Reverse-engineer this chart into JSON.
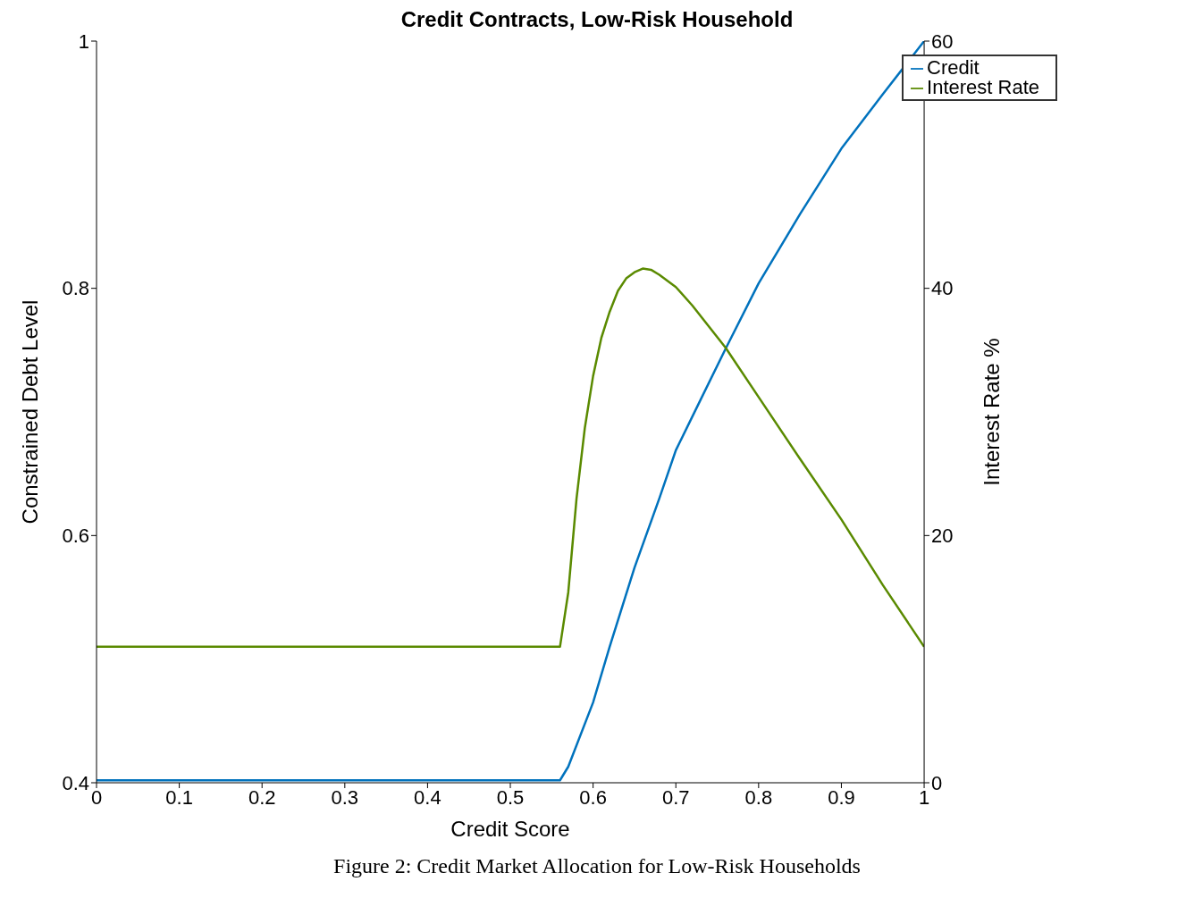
{
  "chart_data": {
    "type": "line",
    "title": "Credit Contracts, Low-Risk Household",
    "xlabel": "Credit Score",
    "ylabel": "Constrained Debt Level",
    "y2label": "Interest Rate %",
    "annotations": [
      "Figure 2: Credit Market Allocation for Low-Risk Households"
    ],
    "xlim": [
      0,
      1
    ],
    "xticks": [
      0,
      0.1,
      0.2,
      0.3,
      0.4,
      0.5,
      0.6,
      0.7,
      0.8,
      0.9,
      1
    ],
    "ylim": [
      0.4,
      1
    ],
    "yticks": [
      0.4,
      0.6,
      0.8,
      1
    ],
    "y2lim": [
      0,
      60
    ],
    "y2ticks": [
      0,
      20,
      40,
      60
    ],
    "grid": false,
    "legend": "top right",
    "marker": "none",
    "line_style": "solid",
    "series": [
      {
        "name": "Credit",
        "color": "#0072bd",
        "x": [
          0,
          0.56,
          0.57,
          0.6,
          0.62,
          0.65,
          0.68,
          0.7,
          0.73,
          0.76,
          0.8,
          0.85,
          0.9,
          0.95,
          1
        ],
        "values": [
          0.402,
          0.402,
          0.413,
          0.465,
          0.51,
          0.574,
          0.63,
          0.669,
          0.71,
          0.751,
          0.804,
          0.86,
          0.913,
          0.957,
          1
        ]
      },
      {
        "name": "Interest Rate",
        "color": "#5a8a00",
        "axis": "y2",
        "x": [
          0,
          0.56,
          0.57,
          0.58,
          0.59,
          0.6,
          0.61,
          0.62,
          0.63,
          0.64,
          0.65,
          0.66,
          0.67,
          0.68,
          0.7,
          0.72,
          0.76,
          0.8,
          0.85,
          0.9,
          0.95,
          1
        ],
        "values": [
          11,
          11,
          15.4,
          23,
          28.7,
          32.9,
          36,
          38.1,
          39.8,
          40.8,
          41.3,
          41.6,
          41.5,
          41.1,
          40.1,
          38.6,
          35.2,
          31.2,
          26.2,
          21.3,
          16,
          11
        ]
      }
    ]
  }
}
